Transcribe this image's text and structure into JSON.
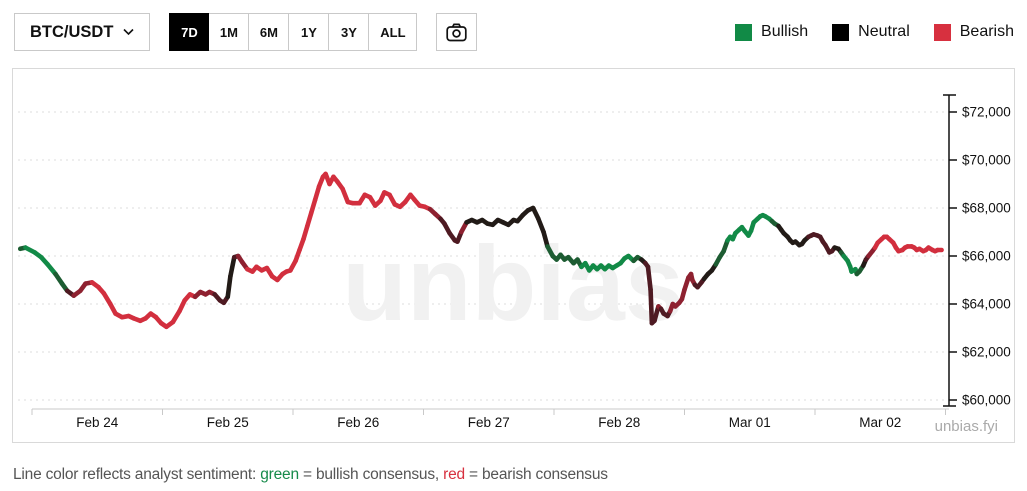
{
  "toolbar": {
    "symbol": "BTC/USDT",
    "timeframes": [
      {
        "label": "7D",
        "active": true
      },
      {
        "label": "1M",
        "active": false
      },
      {
        "label": "6M",
        "active": false
      },
      {
        "label": "1Y",
        "active": false
      },
      {
        "label": "3Y",
        "active": false
      },
      {
        "label": "ALL",
        "active": false
      }
    ]
  },
  "legend": [
    {
      "label": "Bullish",
      "color": "#118a46"
    },
    {
      "label": "Neutral",
      "color": "#000000"
    },
    {
      "label": "Bearish",
      "color": "#d7303f"
    }
  ],
  "watermark": "unbias",
  "attribution": "unbias.fyi",
  "footer": {
    "parts": [
      {
        "text": "Line color reflects analyst sentiment: ",
        "color": "#555555"
      },
      {
        "text": "green",
        "color": "#168a4a"
      },
      {
        "text": " = bullish consensus, ",
        "color": "#555555"
      },
      {
        "text": "red",
        "color": "#d7303f"
      },
      {
        "text": " = bearish consensus",
        "color": "#555555"
      }
    ]
  },
  "chart_data": {
    "type": "line",
    "title": "BTC/USDT price over 7 days, line colored by analyst sentiment",
    "x_unit": "days since Feb 24 00:00",
    "x_tick_labels": [
      "Feb 24",
      "Feb 25",
      "Feb 26",
      "Feb 27",
      "Feb 28",
      "Mar 01",
      "Mar 02"
    ],
    "xlim": [
      -0.15,
      7.0
    ],
    "y_ticks": [
      60000,
      62000,
      64000,
      66000,
      68000,
      70000,
      72000
    ],
    "y_tick_format": "$#,###",
    "ylim": [
      59600,
      72800
    ],
    "grid": "dashed-horizontal",
    "legend_position": "top-right",
    "sentiment_palette": {
      "g": "#128a47",
      "dg": "#1d5c32",
      "k": "#221b17",
      "m": "#4e1a22",
      "dr": "#8e2130",
      "r": "#d22f3e"
    },
    "points": [
      [
        -0.09,
        66300,
        "dg"
      ],
      [
        -0.05,
        66350,
        "dg"
      ],
      [
        0.02,
        66150,
        "g"
      ],
      [
        0.07,
        65950,
        "g"
      ],
      [
        0.12,
        65650,
        "g"
      ],
      [
        0.18,
        65250,
        "g"
      ],
      [
        0.23,
        64850,
        "dg"
      ],
      [
        0.27,
        64550,
        "dg"
      ],
      [
        0.32,
        64350,
        "m"
      ],
      [
        0.37,
        64550,
        "dr"
      ],
      [
        0.41,
        64850,
        "dr"
      ],
      [
        0.46,
        64900,
        "dr"
      ],
      [
        0.51,
        64700,
        "r"
      ],
      [
        0.55,
        64450,
        "r"
      ],
      [
        0.6,
        64000,
        "r"
      ],
      [
        0.64,
        63600,
        "r"
      ],
      [
        0.69,
        63450,
        "r"
      ],
      [
        0.74,
        63500,
        "r"
      ],
      [
        0.78,
        63400,
        "r"
      ],
      [
        0.83,
        63300,
        "r"
      ],
      [
        0.87,
        63400,
        "r"
      ],
      [
        0.91,
        63600,
        "r"
      ],
      [
        0.95,
        63450,
        "r"
      ],
      [
        0.99,
        63200,
        "r"
      ],
      [
        1.03,
        63050,
        "r"
      ],
      [
        1.08,
        63250,
        "r"
      ],
      [
        1.13,
        63700,
        "r"
      ],
      [
        1.17,
        64150,
        "r"
      ],
      [
        1.21,
        64400,
        "r"
      ],
      [
        1.25,
        64300,
        "r"
      ],
      [
        1.29,
        64500,
        "dr"
      ],
      [
        1.33,
        64400,
        "dr"
      ],
      [
        1.36,
        64500,
        "dr"
      ],
      [
        1.4,
        64400,
        "dr"
      ],
      [
        1.44,
        64150,
        "m"
      ],
      [
        1.47,
        64050,
        "m"
      ],
      [
        1.5,
        64300,
        "m"
      ],
      [
        1.52,
        65150,
        "k"
      ],
      [
        1.55,
        65950,
        "k"
      ],
      [
        1.58,
        66000,
        "m"
      ],
      [
        1.61,
        65750,
        "dr"
      ],
      [
        1.65,
        65450,
        "dr"
      ],
      [
        1.69,
        65350,
        "r"
      ],
      [
        1.72,
        65550,
        "r"
      ],
      [
        1.76,
        65400,
        "r"
      ],
      [
        1.8,
        65500,
        "r"
      ],
      [
        1.84,
        65150,
        "r"
      ],
      [
        1.88,
        65000,
        "r"
      ],
      [
        1.92,
        65250,
        "r"
      ],
      [
        1.95,
        65350,
        "r"
      ],
      [
        1.98,
        65400,
        "r"
      ],
      [
        2.02,
        65800,
        "r"
      ],
      [
        2.05,
        66250,
        "r"
      ],
      [
        2.08,
        66700,
        "r"
      ],
      [
        2.11,
        67250,
        "r"
      ],
      [
        2.14,
        67800,
        "r"
      ],
      [
        2.17,
        68350,
        "r"
      ],
      [
        2.2,
        68900,
        "r"
      ],
      [
        2.23,
        69300,
        "r"
      ],
      [
        2.25,
        69420,
        "r"
      ],
      [
        2.28,
        69000,
        "r"
      ],
      [
        2.31,
        69300,
        "r"
      ],
      [
        2.34,
        69100,
        "r"
      ],
      [
        2.38,
        68800,
        "r"
      ],
      [
        2.42,
        68250,
        "r"
      ],
      [
        2.46,
        68200,
        "r"
      ],
      [
        2.51,
        68200,
        "r"
      ],
      [
        2.55,
        68550,
        "r"
      ],
      [
        2.59,
        68450,
        "r"
      ],
      [
        2.63,
        68100,
        "r"
      ],
      [
        2.67,
        68300,
        "r"
      ],
      [
        2.7,
        68650,
        "r"
      ],
      [
        2.74,
        68550,
        "r"
      ],
      [
        2.78,
        68150,
        "r"
      ],
      [
        2.82,
        68050,
        "r"
      ],
      [
        2.86,
        68250,
        "r"
      ],
      [
        2.9,
        68550,
        "r"
      ],
      [
        2.93,
        68350,
        "r"
      ],
      [
        2.97,
        68100,
        "r"
      ],
      [
        3.01,
        68050,
        "r"
      ],
      [
        3.05,
        67950,
        "r"
      ],
      [
        3.09,
        67750,
        "dr"
      ],
      [
        3.13,
        67550,
        "dr"
      ],
      [
        3.16,
        67350,
        "m"
      ],
      [
        3.2,
        66950,
        "m"
      ],
      [
        3.24,
        66650,
        "m"
      ],
      [
        3.26,
        66600,
        "m"
      ],
      [
        3.29,
        67000,
        "m"
      ],
      [
        3.33,
        67400,
        "dr"
      ],
      [
        3.37,
        67500,
        "k"
      ],
      [
        3.41,
        67400,
        "k"
      ],
      [
        3.45,
        67500,
        "k"
      ],
      [
        3.49,
        67350,
        "k"
      ],
      [
        3.53,
        67300,
        "k"
      ],
      [
        3.57,
        67500,
        "k"
      ],
      [
        3.61,
        67400,
        "k"
      ],
      [
        3.65,
        67300,
        "k"
      ],
      [
        3.69,
        67500,
        "k"
      ],
      [
        3.72,
        67450,
        "k"
      ],
      [
        3.76,
        67700,
        "k"
      ],
      [
        3.8,
        67900,
        "k"
      ],
      [
        3.84,
        68000,
        "k"
      ],
      [
        3.88,
        67550,
        "k"
      ],
      [
        3.92,
        67000,
        "k"
      ],
      [
        3.95,
        66400,
        "k"
      ],
      [
        3.99,
        66000,
        "dg"
      ],
      [
        4.02,
        65850,
        "dg"
      ],
      [
        4.05,
        66050,
        "dg"
      ],
      [
        4.08,
        65850,
        "dg"
      ],
      [
        4.11,
        65950,
        "dg"
      ],
      [
        4.15,
        65700,
        "dg"
      ],
      [
        4.18,
        65850,
        "dg"
      ],
      [
        4.21,
        65550,
        "dg"
      ],
      [
        4.24,
        65700,
        "g"
      ],
      [
        4.27,
        65400,
        "g"
      ],
      [
        4.3,
        65600,
        "g"
      ],
      [
        4.33,
        65450,
        "g"
      ],
      [
        4.36,
        65600,
        "g"
      ],
      [
        4.39,
        65450,
        "g"
      ],
      [
        4.42,
        65600,
        "g"
      ],
      [
        4.45,
        65500,
        "g"
      ],
      [
        4.48,
        65600,
        "g"
      ],
      [
        4.51,
        65700,
        "g"
      ],
      [
        4.54,
        65900,
        "g"
      ],
      [
        4.57,
        66000,
        "g"
      ],
      [
        4.61,
        65800,
        "g"
      ],
      [
        4.64,
        65950,
        "dg"
      ],
      [
        4.67,
        65850,
        "dg"
      ],
      [
        4.7,
        65700,
        "k"
      ],
      [
        4.72,
        65550,
        "m"
      ],
      [
        4.74,
        64600,
        "m"
      ],
      [
        4.75,
        63200,
        "m"
      ],
      [
        4.77,
        63300,
        "m"
      ],
      [
        4.8,
        63900,
        "m"
      ],
      [
        4.82,
        63800,
        "dr"
      ],
      [
        4.84,
        63600,
        "m"
      ],
      [
        4.87,
        63500,
        "m"
      ],
      [
        4.89,
        63700,
        "m"
      ],
      [
        4.91,
        64000,
        "dr"
      ],
      [
        4.93,
        63900,
        "dr"
      ],
      [
        4.96,
        64050,
        "dr"
      ],
      [
        4.98,
        64200,
        "dr"
      ],
      [
        5.0,
        64600,
        "dr"
      ],
      [
        5.03,
        65100,
        "dr"
      ],
      [
        5.05,
        65250,
        "dr"
      ],
      [
        5.06,
        65000,
        "dr"
      ],
      [
        5.08,
        64800,
        "dr"
      ],
      [
        5.1,
        64700,
        "m"
      ],
      [
        5.13,
        64900,
        "m"
      ],
      [
        5.15,
        65050,
        "m"
      ],
      [
        5.18,
        65250,
        "k"
      ],
      [
        5.21,
        65400,
        "k"
      ],
      [
        5.24,
        65650,
        "k"
      ],
      [
        5.27,
        65950,
        "dg"
      ],
      [
        5.3,
        66200,
        "dg"
      ],
      [
        5.33,
        66650,
        "dg"
      ],
      [
        5.35,
        66800,
        "g"
      ],
      [
        5.37,
        66700,
        "g"
      ],
      [
        5.39,
        66950,
        "g"
      ],
      [
        5.42,
        67100,
        "g"
      ],
      [
        5.44,
        67200,
        "g"
      ],
      [
        5.46,
        67050,
        "g"
      ],
      [
        5.49,
        66850,
        "g"
      ],
      [
        5.51,
        67050,
        "g"
      ],
      [
        5.53,
        67400,
        "g"
      ],
      [
        5.56,
        67550,
        "g"
      ],
      [
        5.58,
        67650,
        "g"
      ],
      [
        5.6,
        67700,
        "g"
      ],
      [
        5.62,
        67650,
        "g"
      ],
      [
        5.65,
        67550,
        "g"
      ],
      [
        5.67,
        67450,
        "g"
      ],
      [
        5.69,
        67350,
        "dg"
      ],
      [
        5.72,
        67250,
        "dg"
      ],
      [
        5.74,
        67100,
        "k"
      ],
      [
        5.76,
        66950,
        "k"
      ],
      [
        5.79,
        66800,
        "k"
      ],
      [
        5.81,
        66650,
        "k"
      ],
      [
        5.83,
        66550,
        "k"
      ],
      [
        5.85,
        66600,
        "k"
      ],
      [
        5.88,
        66450,
        "k"
      ],
      [
        5.9,
        66500,
        "k"
      ],
      [
        5.92,
        66650,
        "k"
      ],
      [
        5.95,
        66800,
        "k"
      ],
      [
        5.97,
        66850,
        "m"
      ],
      [
        5.99,
        66900,
        "m"
      ],
      [
        6.02,
        66850,
        "m"
      ],
      [
        6.04,
        66800,
        "m"
      ],
      [
        6.06,
        66600,
        "m"
      ],
      [
        6.08,
        66450,
        "m"
      ],
      [
        6.11,
        66150,
        "m"
      ],
      [
        6.13,
        66200,
        "m"
      ],
      [
        6.15,
        66350,
        "m"
      ],
      [
        6.18,
        66300,
        "k"
      ],
      [
        6.2,
        66150,
        "k"
      ],
      [
        6.22,
        66000,
        "dg"
      ],
      [
        6.25,
        65800,
        "g"
      ],
      [
        6.27,
        65550,
        "g"
      ],
      [
        6.28,
        65350,
        "g"
      ],
      [
        6.31,
        65450,
        "g"
      ],
      [
        6.32,
        65250,
        "g"
      ],
      [
        6.34,
        65350,
        "dg"
      ],
      [
        6.37,
        65600,
        "dg"
      ],
      [
        6.39,
        65850,
        "k"
      ],
      [
        6.41,
        66000,
        "m"
      ],
      [
        6.44,
        66200,
        "dr"
      ],
      [
        6.46,
        66350,
        "dr"
      ],
      [
        6.48,
        66550,
        "r"
      ],
      [
        6.51,
        66700,
        "r"
      ],
      [
        6.53,
        66800,
        "r"
      ],
      [
        6.55,
        66800,
        "r"
      ],
      [
        6.57,
        66700,
        "r"
      ],
      [
        6.6,
        66550,
        "r"
      ],
      [
        6.62,
        66350,
        "r"
      ],
      [
        6.64,
        66200,
        "r"
      ],
      [
        6.67,
        66250,
        "r"
      ],
      [
        6.69,
        66350,
        "r"
      ],
      [
        6.71,
        66400,
        "r"
      ],
      [
        6.74,
        66400,
        "r"
      ],
      [
        6.76,
        66350,
        "r"
      ],
      [
        6.78,
        66250,
        "r"
      ],
      [
        6.8,
        66300,
        "r"
      ],
      [
        6.83,
        66200,
        "r"
      ],
      [
        6.85,
        66250,
        "r"
      ],
      [
        6.87,
        66350,
        "r"
      ],
      [
        6.9,
        66250,
        "r"
      ],
      [
        6.92,
        66200,
        "r"
      ],
      [
        6.94,
        66250,
        "r"
      ],
      [
        6.97,
        66250,
        "r"
      ]
    ]
  }
}
